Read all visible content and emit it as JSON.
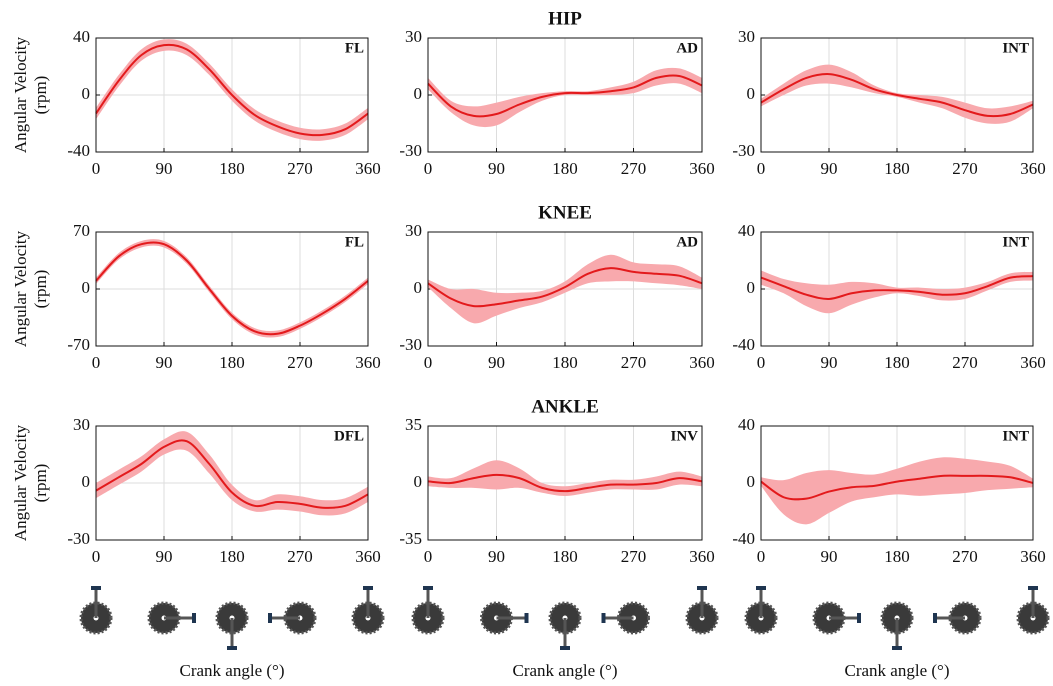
{
  "chart_data": [
    {
      "type": "line",
      "label": "FL",
      "ylabel": [
        "Angular Velocity",
        "(rpm)"
      ],
      "x": [
        0,
        30,
        60,
        90,
        120,
        150,
        180,
        210,
        240,
        270,
        300,
        330,
        360
      ],
      "xlim": [
        0,
        360
      ],
      "xticks": [
        0,
        90,
        180,
        270,
        360
      ],
      "ylim": [
        -40,
        40
      ],
      "yticks": [
        -40,
        0,
        40
      ],
      "grid": true,
      "series": [
        {
          "color": "#e31a1c",
          "band_color": "#f8a9ad",
          "values": [
            -13,
            10,
            28,
            35,
            32,
            18,
            0,
            -14,
            -22,
            -27,
            -28,
            -24,
            -13
          ],
          "upper": [
            -9,
            14,
            32,
            39,
            36,
            22,
            4,
            -10,
            -18,
            -23,
            -24,
            -20,
            -9
          ],
          "lower": [
            -17,
            6,
            24,
            31,
            28,
            14,
            -4,
            -18,
            -26,
            -31,
            -32,
            -28,
            -17
          ]
        }
      ]
    },
    {
      "type": "line",
      "title": "HIP",
      "label": "AD",
      "x": [
        0,
        30,
        60,
        90,
        120,
        150,
        180,
        210,
        240,
        270,
        300,
        330,
        360
      ],
      "xlim": [
        0,
        360
      ],
      "xticks": [
        0,
        90,
        180,
        270,
        360
      ],
      "ylim": [
        -30,
        30
      ],
      "yticks": [
        -30,
        0,
        30
      ],
      "grid": true,
      "series": [
        {
          "color": "#e31a1c",
          "band_color": "#f8a9ad",
          "values": [
            6,
            -6,
            -11,
            -10,
            -5,
            -1,
            1,
            1,
            2,
            4,
            9,
            10,
            5
          ],
          "upper": [
            9,
            -3,
            -6,
            -4,
            -1,
            1,
            2,
            2,
            4,
            7,
            13,
            14,
            9
          ],
          "lower": [
            3,
            -9,
            -16,
            -16,
            -9,
            -3,
            0,
            0,
            0,
            1,
            5,
            6,
            1
          ]
        }
      ]
    },
    {
      "type": "line",
      "label": "INT",
      "x": [
        0,
        30,
        60,
        90,
        120,
        150,
        180,
        210,
        240,
        270,
        300,
        330,
        360
      ],
      "xlim": [
        0,
        360
      ],
      "xticks": [
        0,
        90,
        180,
        270,
        360
      ],
      "ylim": [
        -30,
        30
      ],
      "yticks": [
        -30,
        0,
        30
      ],
      "grid": true,
      "series": [
        {
          "color": "#e31a1c",
          "band_color": "#f8a9ad",
          "values": [
            -4,
            3,
            9,
            11,
            8,
            3,
            0,
            -2,
            -4,
            -8,
            -11,
            -10,
            -5
          ],
          "upper": [
            -2,
            6,
            13,
            16,
            12,
            5,
            1,
            0,
            -1,
            -4,
            -7,
            -6,
            -3
          ],
          "lower": [
            -6,
            0,
            5,
            6,
            4,
            1,
            -1,
            -4,
            -7,
            -12,
            -15,
            -14,
            -7
          ]
        }
      ]
    },
    {
      "type": "line",
      "label": "FL",
      "ylabel": [
        "Angular Velocity",
        "(rpm)"
      ],
      "x": [
        0,
        30,
        60,
        90,
        120,
        150,
        180,
        210,
        240,
        270,
        300,
        330,
        360
      ],
      "xlim": [
        0,
        360
      ],
      "xticks": [
        0,
        90,
        180,
        270,
        360
      ],
      "ylim": [
        -70,
        70
      ],
      "yticks": [
        -70,
        0,
        70
      ],
      "grid": true,
      "series": [
        {
          "color": "#e31a1c",
          "band_color": "#f8a9ad",
          "values": [
            10,
            40,
            55,
            55,
            35,
            0,
            -33,
            -52,
            -55,
            -45,
            -30,
            -12,
            10
          ],
          "upper": [
            14,
            44,
            59,
            59,
            39,
            4,
            -29,
            -48,
            -51,
            -41,
            -26,
            -8,
            14
          ],
          "lower": [
            6,
            36,
            51,
            51,
            31,
            -4,
            -37,
            -56,
            -59,
            -49,
            -34,
            -16,
            6
          ]
        }
      ]
    },
    {
      "type": "line",
      "title": "KNEE",
      "label": "AD",
      "x": [
        0,
        30,
        60,
        90,
        120,
        150,
        180,
        210,
        240,
        270,
        300,
        330,
        360
      ],
      "xlim": [
        0,
        360
      ],
      "xticks": [
        0,
        90,
        180,
        270,
        360
      ],
      "ylim": [
        -30,
        30
      ],
      "yticks": [
        -30,
        0,
        30
      ],
      "grid": true,
      "series": [
        {
          "color": "#e31a1c",
          "band_color": "#f8a9ad",
          "values": [
            3,
            -5,
            -9,
            -8,
            -6,
            -4,
            1,
            8,
            11,
            9,
            8,
            7,
            3
          ],
          "upper": [
            5,
            0,
            0,
            -2,
            -2,
            -1,
            4,
            13,
            18,
            14,
            13,
            12,
            6
          ],
          "lower": [
            1,
            -10,
            -18,
            -14,
            -10,
            -7,
            -2,
            3,
            4,
            4,
            3,
            2,
            0
          ]
        }
      ]
    },
    {
      "type": "line",
      "label": "INT",
      "x": [
        0,
        30,
        60,
        90,
        120,
        150,
        180,
        210,
        240,
        270,
        300,
        330,
        360
      ],
      "xlim": [
        0,
        360
      ],
      "xticks": [
        0,
        90,
        180,
        270,
        360
      ],
      "ylim": [
        -40,
        40
      ],
      "yticks": [
        -40,
        0,
        40
      ],
      "grid": true,
      "series": [
        {
          "color": "#e31a1c",
          "band_color": "#f8a9ad",
          "values": [
            8,
            2,
            -4,
            -7,
            -3,
            -1,
            -1,
            -2,
            -4,
            -3,
            2,
            8,
            9
          ],
          "upper": [
            13,
            7,
            4,
            3,
            5,
            4,
            1,
            1,
            0,
            1,
            5,
            11,
            12
          ],
          "lower": [
            3,
            -3,
            -12,
            -17,
            -11,
            -6,
            -3,
            -5,
            -8,
            -7,
            -1,
            5,
            6
          ]
        }
      ]
    },
    {
      "type": "line",
      "label": "DFL",
      "ylabel": [
        "Angular Velocity",
        "(rpm)"
      ],
      "xlabel": "Crank angle (°)",
      "x": [
        0,
        30,
        60,
        90,
        120,
        150,
        180,
        210,
        240,
        270,
        300,
        330,
        360
      ],
      "xlim": [
        0,
        360
      ],
      "xticks": [
        0,
        90,
        180,
        270,
        360
      ],
      "ylim": [
        -30,
        30
      ],
      "yticks": [
        -30,
        0,
        30
      ],
      "grid": true,
      "series": [
        {
          "color": "#e31a1c",
          "band_color": "#f8a9ad",
          "values": [
            -4,
            3,
            10,
            19,
            22,
            10,
            -5,
            -12,
            -10,
            -11,
            -13,
            -12,
            -6
          ],
          "upper": [
            0,
            7,
            14,
            23,
            27,
            15,
            -1,
            -9,
            -6,
            -7,
            -9,
            -8,
            -2
          ],
          "lower": [
            -8,
            -1,
            6,
            15,
            17,
            5,
            -9,
            -15,
            -14,
            -15,
            -17,
            -16,
            -10
          ]
        }
      ]
    },
    {
      "type": "line",
      "title": "ANKLE",
      "label": "INV",
      "xlabel": "Crank angle (°)",
      "x": [
        0,
        30,
        60,
        90,
        120,
        150,
        180,
        210,
        240,
        270,
        300,
        330,
        360
      ],
      "xlim": [
        0,
        360
      ],
      "xticks": [
        0,
        90,
        180,
        270,
        360
      ],
      "ylim": [
        -35,
        35
      ],
      "yticks": [
        -35,
        0,
        35
      ],
      "grid": true,
      "series": [
        {
          "color": "#e31a1c",
          "band_color": "#f8a9ad",
          "values": [
            1,
            0,
            3,
            5,
            3,
            -3,
            -5,
            -3,
            -1,
            -1,
            0,
            3,
            1
          ],
          "upper": [
            4,
            3,
            9,
            14,
            9,
            0,
            -2,
            0,
            2,
            2,
            4,
            7,
            4
          ],
          "lower": [
            -2,
            -3,
            -3,
            -4,
            -3,
            -6,
            -8,
            -6,
            -4,
            -4,
            -4,
            -1,
            -2
          ]
        }
      ]
    },
    {
      "type": "line",
      "label": "INT",
      "xlabel": "Crank angle (°)",
      "x": [
        0,
        30,
        60,
        90,
        120,
        150,
        180,
        210,
        240,
        270,
        300,
        330,
        360
      ],
      "xlim": [
        0,
        360
      ],
      "xticks": [
        0,
        90,
        180,
        270,
        360
      ],
      "ylim": [
        -40,
        40
      ],
      "yticks": [
        -40,
        0,
        40
      ],
      "grid": true,
      "series": [
        {
          "color": "#e31a1c",
          "band_color": "#f8a9ad",
          "values": [
            1,
            -10,
            -11,
            -6,
            -3,
            -2,
            1,
            3,
            5,
            5,
            5,
            4,
            0
          ],
          "upper": [
            4,
            2,
            7,
            9,
            7,
            6,
            10,
            15,
            18,
            17,
            15,
            12,
            3
          ],
          "lower": [
            -2,
            -22,
            -29,
            -21,
            -13,
            -10,
            -8,
            -9,
            -8,
            -7,
            -5,
            -4,
            -3
          ]
        }
      ]
    }
  ]
}
